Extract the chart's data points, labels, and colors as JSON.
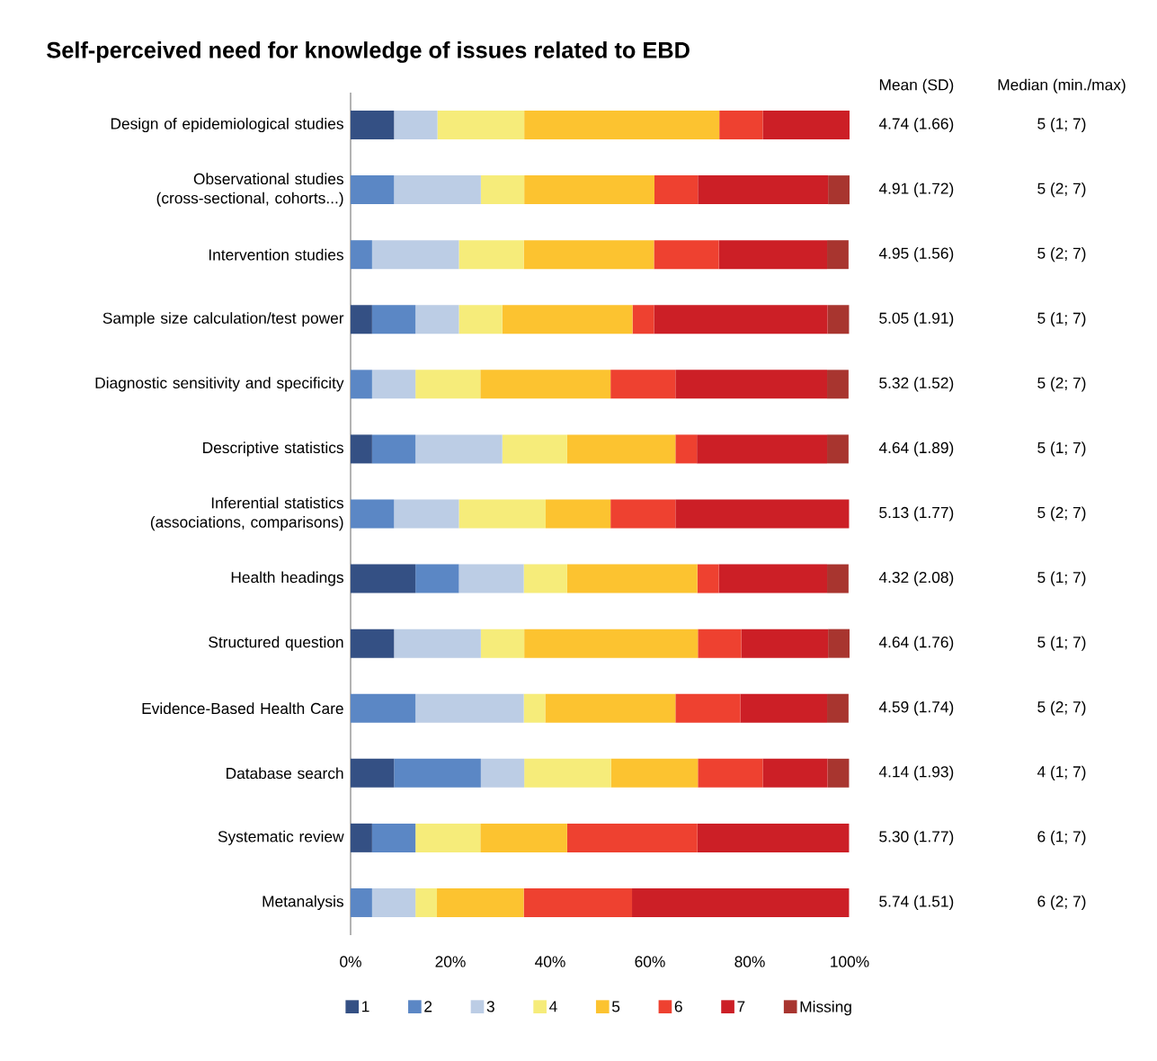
{
  "chart_data": {
    "type": "bar",
    "orientation": "horizontal",
    "stacked": true,
    "title": "Self-perceived need for knowledge of issues related to EBD",
    "categories": [
      "Design of epidemiological studies",
      "Observational studies (cross-sectional, cohorts...)",
      "Intervention studies",
      "Sample size calculation/test power",
      "Diagnostic sensitivity and specificity",
      "Descriptive statistics",
      "Inferential statistics (associations, comparisons)",
      "Health headings",
      "Structured question",
      "Evidence-Based Health Care",
      "Database search",
      "Systematic review",
      "Metanalysis"
    ],
    "series": [
      {
        "name": "1",
        "color": "#345084",
        "values": [
          8.7,
          0,
          0,
          4.3,
          0,
          4.3,
          0,
          13.0,
          8.7,
          0,
          8.7,
          4.3,
          0
        ]
      },
      {
        "name": "2",
        "color": "#5b87c5",
        "values": [
          0,
          8.7,
          4.3,
          8.7,
          4.3,
          8.7,
          8.7,
          8.7,
          0,
          13.0,
          17.4,
          8.7,
          4.3
        ]
      },
      {
        "name": "3",
        "color": "#bccde5",
        "values": [
          8.7,
          17.4,
          17.4,
          8.7,
          8.7,
          17.4,
          13.0,
          13.0,
          17.4,
          21.7,
          8.7,
          0,
          8.7
        ]
      },
      {
        "name": "4",
        "color": "#f6ec7a",
        "values": [
          17.4,
          8.7,
          13.0,
          8.7,
          13.0,
          13.0,
          17.4,
          8.7,
          8.7,
          4.3,
          17.4,
          13.0,
          4.3
        ]
      },
      {
        "name": "5",
        "color": "#fcc330",
        "values": [
          39.1,
          26.1,
          26.1,
          26.1,
          26.1,
          21.7,
          13.0,
          26.1,
          34.8,
          26.1,
          17.4,
          17.4,
          17.4
        ]
      },
      {
        "name": "6",
        "color": "#ee4130",
        "values": [
          8.7,
          8.7,
          13.0,
          4.3,
          13.0,
          4.3,
          13.0,
          4.3,
          8.7,
          13.0,
          13.0,
          26.1,
          21.7
        ]
      },
      {
        "name": "7",
        "color": "#cc1f26",
        "values": [
          17.4,
          26.1,
          21.7,
          34.8,
          30.4,
          26.1,
          34.8,
          21.7,
          17.4,
          17.4,
          13.0,
          30.4,
          43.5
        ]
      },
      {
        "name": "Missing",
        "color": "#a8352f",
        "values": [
          0,
          4.3,
          4.3,
          4.3,
          4.3,
          4.3,
          0,
          4.3,
          4.3,
          4.3,
          4.3,
          0,
          0
        ]
      }
    ],
    "xlim": [
      0,
      100
    ],
    "xticks": [
      {
        "value": 0,
        "label": "0%"
      },
      {
        "value": 20,
        "label": "20%"
      },
      {
        "value": 40,
        "label": "40%"
      },
      {
        "value": 60,
        "label": "60%"
      },
      {
        "value": 80,
        "label": "80%"
      },
      {
        "value": 100,
        "label": "100%"
      }
    ],
    "legend": "bottom",
    "annotations": [
      "Mean (SD)",
      "Median (min./max)",
      "4.74 (1.66)",
      "5 (1; 7)",
      "4.91 (1.72)",
      "5 (2; 7)",
      "4.95 (1.56)",
      "5 (2; 7)",
      "5.05 (1.91)",
      "5 (1; 7)",
      "5.32 (1.52)",
      "5 (2; 7)",
      "4.64 (1.89)",
      "5 (1; 7)",
      "5.13 (1.77)",
      "5 (2; 7)",
      "4.32 (2.08)",
      "5 (1; 7)",
      "4.64 (1.76)",
      "5 (1; 7)",
      "4.59 (1.74)",
      "5 (2; 7)",
      "4.14 (1.93)",
      "4 (1; 7)",
      "5.30 (1.77)",
      "6 (1; 7)",
      "5.74 (1.51)",
      "6 (2; 7)"
    ]
  }
}
